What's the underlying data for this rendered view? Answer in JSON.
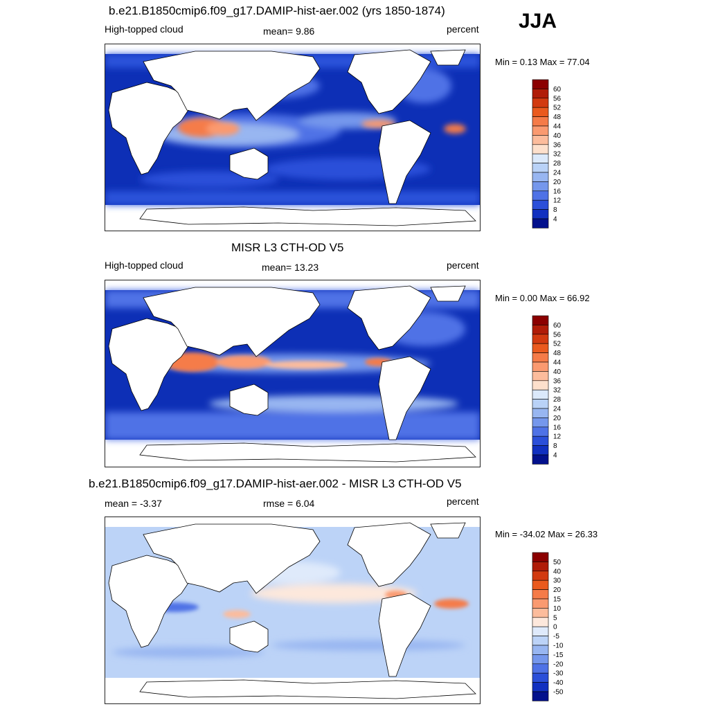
{
  "season": "JJA",
  "panels": [
    {
      "title": "b.e21.B1850cmip6.f09_g17.DAMIP-hist-aer.002 (yrs 1850-1874)",
      "left_label": "High-topped cloud",
      "center_label": "mean=   9.86",
      "right_label": "percent",
      "minmax": "Min =   0.13 Max =  77.04",
      "colorbar": {
        "labels": [
          "60",
          "56",
          "52",
          "48",
          "44",
          "40",
          "36",
          "32",
          "28",
          "24",
          "20",
          "16",
          "12",
          "8",
          "4"
        ],
        "colors": [
          "#8b0000",
          "#b01c08",
          "#d23a10",
          "#ea5a1e",
          "#f57b48",
          "#fa9a70",
          "#fcbc9c",
          "#fde0cc",
          "#dbe9fb",
          "#b9d2f7",
          "#98b6f1",
          "#7597ec",
          "#4f72e6",
          "#2b4fd9",
          "#1130c0",
          "#03118c"
        ]
      }
    },
    {
      "title": "MISR L3 CTH-OD V5",
      "left_label": "High-topped cloud",
      "center_label": "mean=  13.23",
      "right_label": "percent",
      "minmax": "Min =   0.00 Max =  66.92",
      "colorbar": {
        "labels": [
          "60",
          "56",
          "52",
          "48",
          "44",
          "40",
          "36",
          "32",
          "28",
          "24",
          "20",
          "16",
          "12",
          "8",
          "4"
        ],
        "colors": [
          "#8b0000",
          "#b01c08",
          "#d23a10",
          "#ea5a1e",
          "#f57b48",
          "#fa9a70",
          "#fcbc9c",
          "#fde0cc",
          "#dbe9fb",
          "#b9d2f7",
          "#98b6f1",
          "#7597ec",
          "#4f72e6",
          "#2b4fd9",
          "#1130c0",
          "#03118c"
        ]
      }
    },
    {
      "title": "b.e21.B1850cmip6.f09_g17.DAMIP-hist-aer.002 - MISR L3 CTH-OD V5",
      "left_label": "mean =  -3.37",
      "center_label": "rmse =   6.04",
      "right_label": "percent",
      "minmax": "Min = -34.02 Max =  26.33",
      "colorbar": {
        "labels": [
          "50",
          "40",
          "30",
          "20",
          "15",
          "10",
          "5",
          "0",
          "-5",
          "-10",
          "-15",
          "-20",
          "-30",
          "-40",
          "-50"
        ],
        "colors": [
          "#8b0000",
          "#b01c08",
          "#d23a10",
          "#ea5a1e",
          "#f57b48",
          "#fa9a70",
          "#fcbc9c",
          "#fde8dc",
          "#dfeafb",
          "#bcd3f7",
          "#98b6f1",
          "#7597ec",
          "#4f72e6",
          "#2b4fd9",
          "#1130c0",
          "#03118c"
        ]
      }
    }
  ],
  "colors": {
    "land": "#ffffff",
    "coast": "#000000",
    "frame": "#222222"
  }
}
